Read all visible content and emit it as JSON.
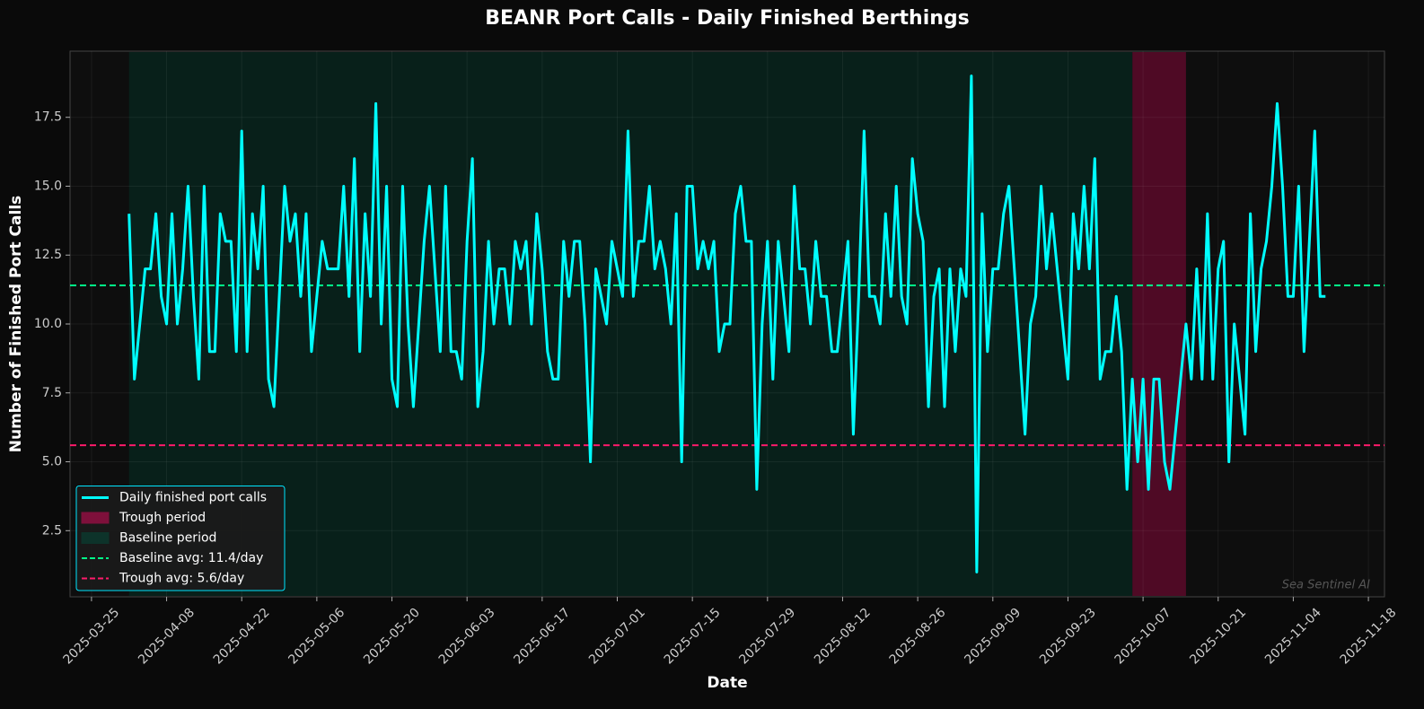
{
  "chart_data": {
    "type": "line",
    "title": "BEANR Port Calls - Daily Finished Berthings",
    "xlabel": "Date",
    "ylabel": "Number of Finished Port Calls",
    "watermark": "Sea Sentinel AI",
    "x": [
      "2025-04-01",
      "2025-04-02",
      "2025-04-03",
      "2025-04-04",
      "2025-04-05",
      "2025-04-06",
      "2025-04-07",
      "2025-04-08",
      "2025-04-09",
      "2025-04-10",
      "2025-04-11",
      "2025-04-12",
      "2025-04-13",
      "2025-04-14",
      "2025-04-15",
      "2025-04-16",
      "2025-04-17",
      "2025-04-18",
      "2025-04-19",
      "2025-04-20",
      "2025-04-21",
      "2025-04-22",
      "2025-04-23",
      "2025-04-24",
      "2025-04-25",
      "2025-04-26",
      "2025-04-27",
      "2025-04-28",
      "2025-04-29",
      "2025-04-30",
      "2025-05-01",
      "2025-05-02",
      "2025-05-03",
      "2025-05-04",
      "2025-05-05",
      "2025-05-06",
      "2025-05-07",
      "2025-05-08",
      "2025-05-09",
      "2025-05-10",
      "2025-05-11",
      "2025-05-12",
      "2025-05-13",
      "2025-05-14",
      "2025-05-15",
      "2025-05-16",
      "2025-05-17",
      "2025-05-18",
      "2025-05-19",
      "2025-05-20",
      "2025-05-21",
      "2025-05-22",
      "2025-05-23",
      "2025-05-24",
      "2025-05-25",
      "2025-05-26",
      "2025-05-27",
      "2025-05-28",
      "2025-05-29",
      "2025-05-30",
      "2025-05-31",
      "2025-06-01",
      "2025-06-02",
      "2025-06-03",
      "2025-06-04",
      "2025-06-05",
      "2025-06-06",
      "2025-06-07",
      "2025-06-08",
      "2025-06-09",
      "2025-06-10",
      "2025-06-11",
      "2025-06-12",
      "2025-06-13",
      "2025-06-14",
      "2025-06-15",
      "2025-06-16",
      "2025-06-17",
      "2025-06-18",
      "2025-06-19",
      "2025-06-20",
      "2025-06-21",
      "2025-06-22",
      "2025-06-23",
      "2025-06-24",
      "2025-06-25",
      "2025-06-26",
      "2025-06-27",
      "2025-06-28",
      "2025-06-29",
      "2025-06-30",
      "2025-07-01",
      "2025-07-02",
      "2025-07-03",
      "2025-07-04",
      "2025-07-05",
      "2025-07-06",
      "2025-07-07",
      "2025-07-08",
      "2025-07-09",
      "2025-07-10",
      "2025-07-11",
      "2025-07-12",
      "2025-07-13",
      "2025-07-14",
      "2025-07-15",
      "2025-07-16",
      "2025-07-17",
      "2025-07-18",
      "2025-07-19",
      "2025-07-20",
      "2025-07-21",
      "2025-07-22",
      "2025-07-23",
      "2025-07-24",
      "2025-07-25",
      "2025-07-26",
      "2025-07-27",
      "2025-07-28",
      "2025-07-29",
      "2025-07-30",
      "2025-07-31",
      "2025-08-01",
      "2025-08-02",
      "2025-08-03",
      "2025-08-04",
      "2025-08-05",
      "2025-08-06",
      "2025-08-07",
      "2025-08-08",
      "2025-08-09",
      "2025-08-10",
      "2025-08-11",
      "2025-08-12",
      "2025-08-13",
      "2025-08-14",
      "2025-08-15",
      "2025-08-16",
      "2025-08-17",
      "2025-08-18",
      "2025-08-19",
      "2025-08-20",
      "2025-08-21",
      "2025-08-22",
      "2025-08-23",
      "2025-08-24",
      "2025-08-25",
      "2025-08-26",
      "2025-08-27",
      "2025-08-28",
      "2025-08-29",
      "2025-08-30",
      "2025-08-31",
      "2025-09-01",
      "2025-09-02",
      "2025-09-03",
      "2025-09-04",
      "2025-09-05",
      "2025-09-06",
      "2025-09-07",
      "2025-09-08",
      "2025-09-09",
      "2025-09-10",
      "2025-09-11",
      "2025-09-12",
      "2025-09-13",
      "2025-09-14",
      "2025-09-15",
      "2025-09-16",
      "2025-09-17",
      "2025-09-18",
      "2025-09-19",
      "2025-09-20",
      "2025-09-21",
      "2025-09-22",
      "2025-09-23",
      "2025-09-24",
      "2025-09-25",
      "2025-09-26",
      "2025-09-27",
      "2025-09-28",
      "2025-09-29",
      "2025-09-30",
      "2025-10-01",
      "2025-10-02",
      "2025-10-03",
      "2025-10-04",
      "2025-10-05",
      "2025-10-06",
      "2025-10-07",
      "2025-10-08",
      "2025-10-09",
      "2025-10-10",
      "2025-10-11",
      "2025-10-12",
      "2025-10-13",
      "2025-10-14",
      "2025-10-15",
      "2025-10-16",
      "2025-10-17",
      "2025-10-18",
      "2025-10-19",
      "2025-10-20",
      "2025-10-21",
      "2025-10-22",
      "2025-10-23",
      "2025-10-24",
      "2025-10-25",
      "2025-10-26",
      "2025-10-27",
      "2025-10-28",
      "2025-10-29",
      "2025-10-30",
      "2025-10-31",
      "2025-11-01",
      "2025-11-02",
      "2025-11-03",
      "2025-11-04",
      "2025-11-05",
      "2025-11-06",
      "2025-11-07",
      "2025-11-08",
      "2025-11-09",
      "2025-11-10"
    ],
    "series": [
      {
        "name": "Daily finished port calls",
        "color": "#00ffff",
        "values": [
          14,
          8,
          10,
          12,
          12,
          14,
          11,
          10,
          14,
          10,
          12,
          15,
          11,
          8,
          15,
          9,
          9,
          14,
          13,
          13,
          9,
          17,
          9,
          14,
          12,
          15,
          8,
          7,
          11,
          15,
          13,
          14,
          11,
          14,
          9,
          11,
          13,
          12,
          12,
          12,
          15,
          11,
          16,
          9,
          14,
          11,
          18,
          10,
          15,
          8,
          7,
          15,
          10,
          7,
          10,
          13,
          15,
          12,
          9,
          15,
          9,
          9,
          8,
          13,
          16,
          7,
          9,
          13,
          10,
          12,
          12,
          10,
          13,
          12,
          13,
          10,
          14,
          12,
          9,
          8,
          8,
          13,
          11,
          13,
          13,
          10,
          5,
          12,
          11,
          10,
          13,
          12,
          11,
          17,
          11,
          13,
          13,
          15,
          12,
          13,
          12,
          10,
          14,
          5,
          15,
          15,
          12,
          13,
          12,
          13,
          9,
          10,
          10,
          14,
          15,
          13,
          13,
          4,
          10,
          13,
          8,
          13,
          11,
          9,
          15,
          12,
          12,
          10,
          13,
          11,
          11,
          9,
          9,
          11,
          13,
          6,
          11,
          17,
          11,
          11,
          10,
          14,
          11,
          15,
          11,
          10,
          16,
          14,
          13,
          7,
          11,
          12,
          7,
          12,
          9,
          12,
          11,
          19,
          1,
          14,
          9,
          12,
          12,
          14,
          15,
          12,
          9,
          6,
          10,
          11,
          15,
          12,
          14,
          12,
          10,
          8,
          14,
          12,
          15,
          12,
          16,
          8,
          9,
          9,
          11,
          9,
          4,
          8,
          5,
          8,
          4,
          8,
          8,
          5,
          4,
          6,
          8,
          10,
          8,
          12,
          8,
          14,
          8,
          12,
          13,
          5,
          10,
          8,
          6,
          14,
          9,
          12,
          13,
          15,
          18,
          15,
          11,
          11,
          15,
          9,
          13,
          17,
          11,
          11
        ]
      }
    ],
    "spans": [
      {
        "name": "Trough period",
        "start": "2025-10-05",
        "end": "2025-10-15",
        "color": "#4f0a25"
      },
      {
        "name": "Baseline period",
        "start": "2025-04-01",
        "end": "2025-10-05",
        "color": "#08201a"
      }
    ],
    "hlines": [
      {
        "name": "Baseline avg: 11.4/day",
        "value": 11.4,
        "color": "#00ff88"
      },
      {
        "name": "Trough avg: 5.6/day",
        "value": 5.6,
        "color": "#ff1a6a"
      }
    ],
    "xlim": [
      "2025-03-21",
      "2025-11-21"
    ],
    "xticks": [
      "2025-03-25",
      "2025-04-08",
      "2025-04-22",
      "2025-05-06",
      "2025-05-20",
      "2025-06-03",
      "2025-06-17",
      "2025-07-01",
      "2025-07-15",
      "2025-07-29",
      "2025-08-12",
      "2025-08-26",
      "2025-09-09",
      "2025-09-23",
      "2025-10-07",
      "2025-10-21",
      "2025-11-04",
      "2025-11-18"
    ],
    "ylim": [
      0.1,
      19.9
    ],
    "yticks": [
      2.5,
      {
        "value": 5,
        "label": "5.0"
      },
      7.5,
      {
        "value": 10,
        "label": "10.0"
      },
      12.5,
      {
        "value": 15,
        "label": "15.0"
      },
      17.5
    ],
    "grid": true,
    "legend": "lower left"
  }
}
